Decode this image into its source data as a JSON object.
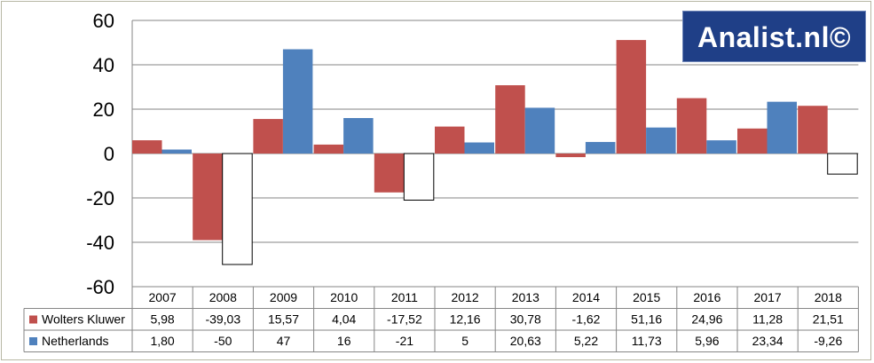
{
  "chart_data": {
    "type": "bar",
    "categories": [
      "2007",
      "2008",
      "2009",
      "2010",
      "2011",
      "2012",
      "2013",
      "2014",
      "2015",
      "2016",
      "2017",
      "2018"
    ],
    "ylim": [
      -60,
      60
    ],
    "yticks": [
      "60",
      "40",
      "20",
      "0",
      "-20",
      "-40",
      "-60"
    ],
    "grid": true,
    "series": [
      {
        "name": "Wolters Kluwer",
        "color": "#c0504d",
        "values": [
          5.98,
          -39.03,
          15.57,
          4.04,
          -17.52,
          12.16,
          30.78,
          -1.62,
          51.16,
          24.96,
          11.28,
          21.51
        ],
        "labels": [
          "5,98",
          "-39,03",
          "15,57",
          "4,04",
          "-17,52",
          "12,16",
          "30,78",
          "-1,62",
          "51,16",
          "24,96",
          "11,28",
          "21,51"
        ]
      },
      {
        "name": "Netherlands",
        "color": "#4f81bd",
        "negative_fill": "#ffffff",
        "values": [
          1.8,
          -50,
          47,
          16,
          -21,
          5,
          20.63,
          5.22,
          11.73,
          5.96,
          23.34,
          -9.26
        ],
        "labels": [
          "1,80",
          "-50",
          "47",
          "16",
          "-21",
          "5",
          "20,63",
          "5,22",
          "11,73",
          "5,96",
          "23,34",
          "-9,26"
        ]
      }
    ]
  },
  "logo": {
    "text": "Analist.nl©"
  }
}
